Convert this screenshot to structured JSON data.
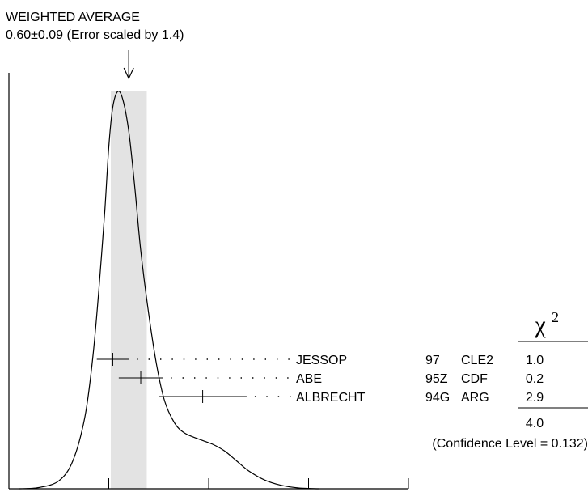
{
  "chart_data": {
    "type": "scatter",
    "title": "WEIGHTED AVERAGE",
    "subtitle": "0.60±0.09 (Error scaled by 1.4)",
    "weighted_average": {
      "value": 0.6,
      "error": 0.09
    },
    "xlim": [
      0,
      2
    ],
    "x_ticks": [
      "0",
      "0.5",
      "1",
      "1.5",
      "2"
    ],
    "measurements": [
      {
        "author": "JESSOP",
        "year": "97",
        "experiment": "CLE2",
        "value": 0.52,
        "error": 0.08,
        "chi2": "1.0"
      },
      {
        "author": "ABE",
        "year": "95Z",
        "experiment": "CDF",
        "value": 0.66,
        "error": 0.11,
        "chi2": "0.2"
      },
      {
        "author": "ALBRECHT",
        "year": "94G",
        "experiment": "ARG",
        "value": 0.97,
        "error": 0.22,
        "chi2": "2.9"
      }
    ],
    "chi2_header": "χ",
    "chi2_sup": "2",
    "chi2_total": "4.0",
    "confidence_level": "(Confidence Level = 0.132)",
    "ideogram_curve": [
      [
        0.05,
        0.0
      ],
      [
        0.15,
        0.003
      ],
      [
        0.25,
        0.02
      ],
      [
        0.32,
        0.07
      ],
      [
        0.38,
        0.18
      ],
      [
        0.42,
        0.33
      ],
      [
        0.45,
        0.5
      ],
      [
        0.48,
        0.7
      ],
      [
        0.5,
        0.86
      ],
      [
        0.52,
        0.96
      ],
      [
        0.545,
        1.0
      ],
      [
        0.57,
        0.98
      ],
      [
        0.6,
        0.9
      ],
      [
        0.63,
        0.76
      ],
      [
        0.66,
        0.6
      ],
      [
        0.7,
        0.44
      ],
      [
        0.74,
        0.31
      ],
      [
        0.78,
        0.22
      ],
      [
        0.83,
        0.165
      ],
      [
        0.88,
        0.14
      ],
      [
        0.95,
        0.125
      ],
      [
        1.02,
        0.112
      ],
      [
        1.08,
        0.095
      ],
      [
        1.14,
        0.07
      ],
      [
        1.2,
        0.045
      ],
      [
        1.28,
        0.022
      ],
      [
        1.36,
        0.009
      ],
      [
        1.45,
        0.002
      ],
      [
        1.55,
        0.0
      ]
    ]
  }
}
